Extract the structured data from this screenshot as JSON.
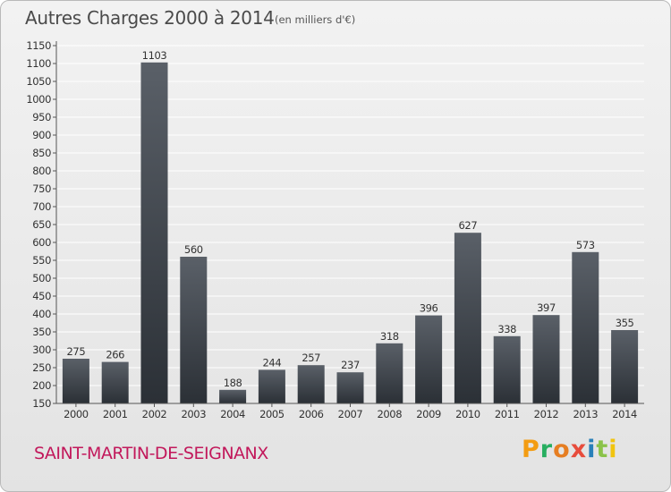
{
  "header": {
    "title": "Autres Charges 2000 à 2014",
    "subtitle": "(en milliers d'€)"
  },
  "footer": {
    "commune": "SAINT-MARTIN-DE-SEIGNANX",
    "brand_letters": [
      "P",
      "r",
      "o",
      "x",
      "i",
      "t",
      "i"
    ],
    "brand_colors": [
      "#f39c12",
      "#27ae60",
      "#e67e22",
      "#e74c3c",
      "#2980b9",
      "#8bc34a",
      "#f1c40f"
    ]
  },
  "colors": {
    "bar_top": "#5a6068",
    "bar_bottom": "#2b3036",
    "grid": "#ffffff",
    "axis": "#555555"
  },
  "chart_data": {
    "type": "bar",
    "title": "Autres Charges 2000 à 2014",
    "subtitle": "(en milliers d'€)",
    "xlabel": "",
    "ylabel": "",
    "categories": [
      "2000",
      "2001",
      "2002",
      "2003",
      "2004",
      "2005",
      "2006",
      "2007",
      "2008",
      "2009",
      "2010",
      "2011",
      "2012",
      "2013",
      "2014"
    ],
    "values": [
      275,
      266,
      1103,
      560,
      188,
      244,
      257,
      237,
      318,
      396,
      627,
      338,
      397,
      573,
      355
    ],
    "ylim": [
      150,
      1150
    ],
    "ytick_step": 50,
    "grid": true,
    "legend": "none"
  }
}
